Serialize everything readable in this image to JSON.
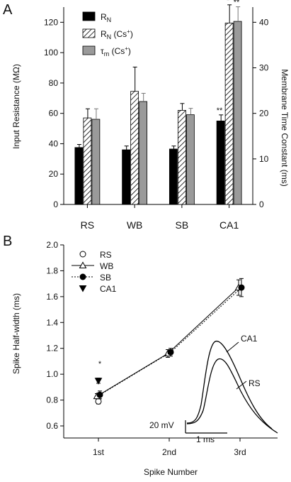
{
  "chart_data": [
    {
      "panel": "A",
      "type": "bar",
      "categories": [
        "RS",
        "WB",
        "SB",
        "CA1"
      ],
      "ylabel": "Input Resistance (MΩ)",
      "y2label": "Membrane Time Constant (ms)",
      "ylim": [
        0,
        130
      ],
      "y2lim": [
        0,
        43.333
      ],
      "yticks": [
        0,
        20,
        40,
        60,
        80,
        100,
        120
      ],
      "y2ticks": [
        0,
        10,
        20,
        30,
        40
      ],
      "legend_position": "top-left",
      "series": [
        {
          "name_main": "R",
          "name_sub": "N",
          "name_tail": "",
          "axis": "left",
          "color": "#000000",
          "fill": "solid",
          "values": [
            37.5,
            36,
            36.5,
            55
          ],
          "errors": [
            2,
            2.5,
            2,
            4
          ]
        },
        {
          "name_main": "R",
          "name_sub": "N",
          "name_tail": " (Cs",
          "name_sup": "+",
          "name_end": ")",
          "axis": "left",
          "color": "#000000",
          "fill": "hatch",
          "values": [
            57,
            74.5,
            62,
            119.5
          ],
          "errors": [
            6,
            16,
            4.5,
            12
          ]
        },
        {
          "name_main": "τ",
          "name_sub": "m",
          "name_tail": " (Cs",
          "name_sup": "+",
          "name_end": ")",
          "axis": "right",
          "color": "#9a9a9a",
          "fill": "solid",
          "values": [
            18.7,
            22.6,
            19.7,
            40.2
          ],
          "errors": [
            2.3,
            1.8,
            1.4,
            3.2
          ]
        }
      ],
      "annotations": [
        {
          "text": "**",
          "category": "CA1",
          "series": 0
        },
        {
          "text": "*",
          "category": "CA1",
          "series": 1
        },
        {
          "text": "**",
          "category": "CA1",
          "series": 2
        }
      ]
    },
    {
      "panel": "B",
      "type": "line",
      "categories": [
        "1st",
        "2nd",
        "3rd"
      ],
      "xlabel": "Spike Number",
      "ylabel": "Spike Half-width (ms)",
      "ylim": [
        0.6,
        2.0
      ],
      "yticks": [
        "0.6",
        "0.8",
        "1.0",
        "1.2",
        "1.4",
        "1.6",
        "1.8",
        "2.0"
      ],
      "legend_position": "top-left",
      "series": [
        {
          "name": "RS",
          "marker": "open-circle",
          "line": "none",
          "values": [
            0.79,
            null,
            null
          ],
          "errors": [
            0.02,
            null,
            null
          ]
        },
        {
          "name": "WB",
          "marker": "open-triangle",
          "line": "solid",
          "values": [
            0.83,
            1.16,
            1.67
          ],
          "errors": [
            0.02,
            0.03,
            0.06
          ]
        },
        {
          "name": "SB",
          "marker": "filled-circle",
          "line": "dotted",
          "values": [
            0.84,
            1.17,
            1.67
          ],
          "errors": [
            0.03,
            0.03,
            0.07
          ]
        },
        {
          "name": "CA1",
          "marker": "filled-triangle-down",
          "line": "none",
          "values": [
            0.95,
            null,
            null
          ],
          "errors": [
            0.02,
            null,
            null
          ]
        }
      ],
      "annotations": [
        {
          "text": "*",
          "category": "1st"
        }
      ],
      "inset": {
        "traces": [
          "CA1",
          "RS"
        ],
        "scale_voltage": "20 mV",
        "scale_time": "1 ms"
      }
    }
  ],
  "panel_labels": [
    "A",
    "B"
  ]
}
